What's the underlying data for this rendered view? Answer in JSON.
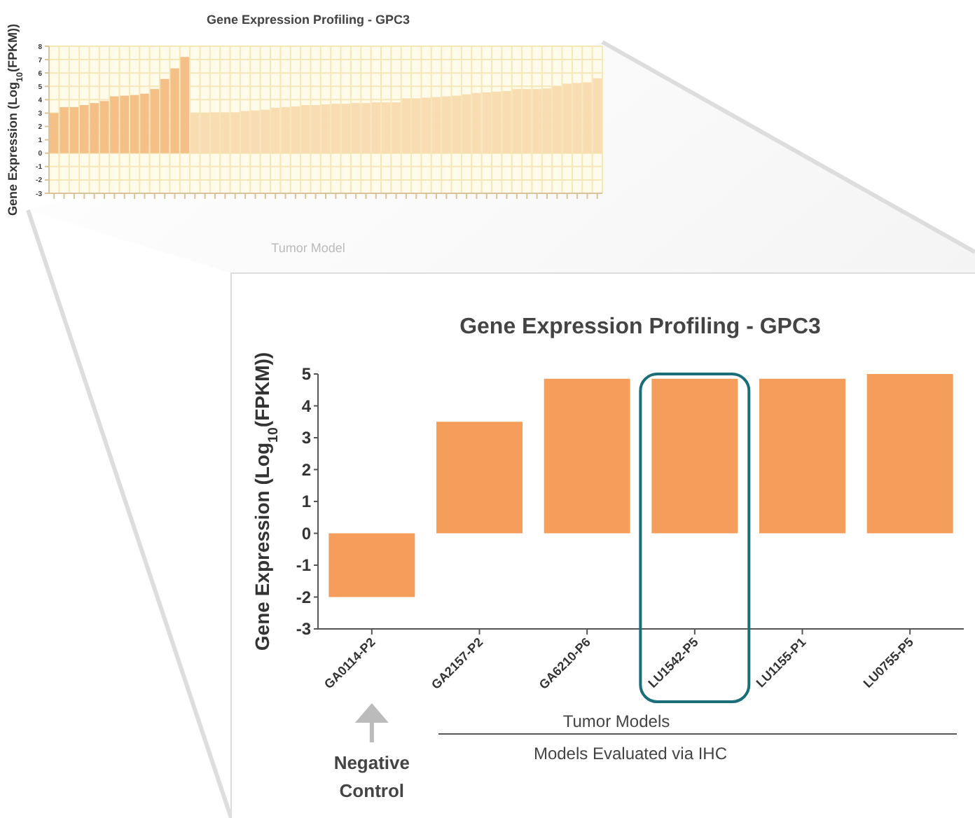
{
  "chart_data": [
    {
      "type": "bar",
      "title": "Gene Expression Profiling - GPC3",
      "xlabel": "Tumor Model",
      "ylabel": "Gene Expression (Log$_{10}$(FPKM))",
      "categories": [
        null,
        null,
        null,
        null,
        null,
        null,
        null,
        null,
        null,
        null,
        null,
        null,
        null,
        null,
        null,
        null,
        null,
        null,
        null,
        null,
        null,
        null,
        null,
        null,
        null,
        null,
        null,
        null,
        null,
        null,
        null,
        null,
        null,
        null,
        null,
        null,
        null,
        null,
        null,
        null,
        null,
        null,
        null,
        null,
        null,
        null,
        null,
        null,
        null,
        null,
        null,
        null,
        null,
        null,
        null
      ],
      "values": [
        3.0,
        3.45,
        3.45,
        3.6,
        3.75,
        3.9,
        4.25,
        4.3,
        4.35,
        4.45,
        4.8,
        5.55,
        6.35,
        7.2,
        3.0,
        3.0,
        3.05,
        3.05,
        3.05,
        3.15,
        3.2,
        3.25,
        3.4,
        3.45,
        3.5,
        3.6,
        3.6,
        3.65,
        3.7,
        3.7,
        3.75,
        3.75,
        3.8,
        3.8,
        3.8,
        4.1,
        4.1,
        4.15,
        4.2,
        4.25,
        4.3,
        4.4,
        4.5,
        4.55,
        4.6,
        4.65,
        4.8,
        4.8,
        4.8,
        4.85,
        5.0,
        5.2,
        5.25,
        5.3,
        5.6
      ],
      "colors": [
        "#f5c088",
        "#f5c088",
        "#f5c088",
        "#f5c088",
        "#f5c088",
        "#f5c088",
        "#f5c088",
        "#f5c088",
        "#f5c088",
        "#f5c088",
        "#f5c088",
        "#f5c088",
        "#f5c088",
        "#f5c088",
        "#f9ddb2",
        "#f9ddb2",
        "#f9ddb2",
        "#f9ddb2",
        "#f9ddb2",
        "#f9ddb2",
        "#f9ddb2",
        "#f9ddb2",
        "#f9ddb2",
        "#f9ddb2",
        "#f9ddb2",
        "#f9ddb2",
        "#f9ddb2",
        "#f9ddb2",
        "#f9ddb2",
        "#f9ddb2",
        "#f9ddb2",
        "#f9ddb2",
        "#f9ddb2",
        "#f9ddb2",
        "#f9ddb2",
        "#f9ddb2",
        "#f9ddb2",
        "#f9ddb2",
        "#f9ddb2",
        "#f9ddb2",
        "#f9ddb2",
        "#f9ddb2",
        "#f9ddb2",
        "#f9ddb2",
        "#f9ddb2",
        "#f9ddb2",
        "#f9ddb2",
        "#f9ddb2",
        "#f9ddb2",
        "#f9ddb2",
        "#f9ddb2",
        "#f9ddb2",
        "#f9ddb2",
        "#f9ddb2",
        "#f9ddb2"
      ],
      "ylim": [
        -3,
        8
      ],
      "yticks": [
        -3,
        -2,
        -1,
        0,
        1,
        2,
        3,
        4,
        5,
        6,
        7,
        8
      ],
      "grid": true
    },
    {
      "type": "bar",
      "title": "Gene Expression Profiling - GPC3",
      "xlabel": "Tumor Models",
      "ylabel": "Gene Expression (Log$_{10}$(FPKM))",
      "categories": [
        "GA0114-P2",
        "GA2157-P2",
        "GA6210-P6",
        "LU1542-P5",
        "LU1155-P1",
        "LU0755-P5"
      ],
      "values": [
        -2,
        3.5,
        4.85,
        4.85,
        4.85,
        5.0
      ],
      "color": "#f59d5a",
      "ylim": [
        -3,
        5
      ],
      "yticks": [
        -3,
        -2,
        -1,
        0,
        1,
        2,
        3,
        4,
        5
      ],
      "annotations": [
        "Models Evaluated via IHC",
        "Negative Control"
      ]
    }
  ]
}
